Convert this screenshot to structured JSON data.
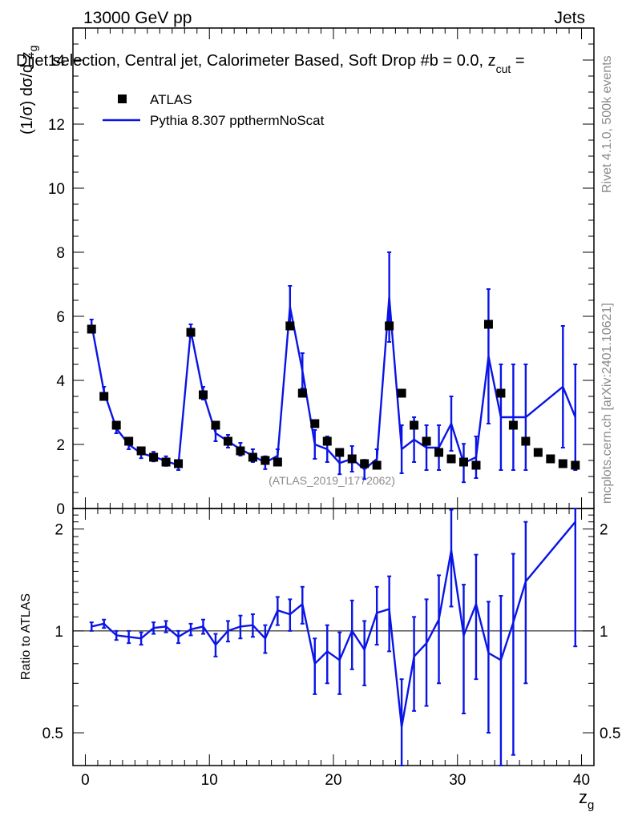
{
  "header": {
    "energy": "13000 GeV pp",
    "category": "Jets",
    "selection": "Dijet selection, Central jet, Calorimeter Based, Soft Drop #b = 0.0, z",
    "selection_sub": "cut",
    "selection_tail": " ="
  },
  "side": {
    "rivet": "Rivet 4.1.0,  500k events",
    "mcplots": "mcplots.cern.ch [arXiv:2401.10621]"
  },
  "watermark": "(ATLAS_2019_I1772062)",
  "axes": {
    "ylabel_main": "(1/σ) dσ/d z",
    "ylabel_main_sub": "g",
    "ylabel_ratio": "Ratio to ATLAS",
    "xlabel": "z",
    "xlabel_sub": "g"
  },
  "legend": {
    "data_label": "ATLAS",
    "mc_label": "Pythia 8.307 ppthermNoScat"
  },
  "colors": {
    "data": "#000000",
    "mc": "#0a14e6"
  },
  "chart_data": [
    {
      "type": "scatter",
      "title": "Dijet selection, Central jet, Calorimeter Based, Soft Drop #b = 0.0, z_cut =",
      "xlabel": "z_g",
      "ylabel": "(1/σ) dσ/d z_g",
      "xlim": [
        -1,
        41
      ],
      "ylim": [
        0,
        15
      ],
      "xticks": [
        0,
        10,
        20,
        30,
        40
      ],
      "yticks": [
        0,
        2,
        4,
        6,
        8,
        10,
        12,
        14
      ],
      "series": [
        {
          "name": "ATLAS",
          "style": "markers",
          "x": [
            0.5,
            1.5,
            2.5,
            3.5,
            4.5,
            5.5,
            6.5,
            7.5,
            8.5,
            9.5,
            10.5,
            11.5,
            12.5,
            13.5,
            14.5,
            15.5,
            16.5,
            17.5,
            18.5,
            19.5,
            20.5,
            21.5,
            22.5,
            23.5,
            24.5,
            25.5,
            26.5,
            27.5,
            28.5,
            29.5,
            30.5,
            31.5,
            32.5,
            33.5,
            34.5,
            35.5,
            36.5,
            37.5,
            38.5,
            39.5
          ],
          "y": [
            5.6,
            3.5,
            2.6,
            2.1,
            1.8,
            1.6,
            1.45,
            1.4,
            5.5,
            3.55,
            2.6,
            2.1,
            1.8,
            1.6,
            1.5,
            1.45,
            5.7,
            3.6,
            2.65,
            2.1,
            1.75,
            1.55,
            1.4,
            1.35,
            5.7,
            3.6,
            2.6,
            2.1,
            1.75,
            1.55,
            1.45,
            1.35,
            5.75,
            3.6,
            2.6,
            2.1,
            1.75,
            1.55,
            1.4,
            1.35
          ]
        },
        {
          "name": "Pythia 8.307 ppthermNoScat",
          "style": "line",
          "x": [
            0.5,
            1.5,
            2.5,
            3.5,
            4.5,
            5.5,
            6.5,
            7.5,
            8.5,
            9.5,
            10.5,
            11.5,
            12.5,
            13.5,
            14.5,
            15.5,
            16.5,
            17.5,
            18.5,
            19.5,
            20.5,
            21.5,
            22.5,
            23.5,
            24.5,
            25.5,
            26.5,
            27.5,
            28.5,
            29.5,
            30.5,
            31.5,
            32.5,
            33.5,
            34.5,
            35.5,
            38.5,
            39.5
          ],
          "y": [
            5.75,
            3.65,
            2.5,
            2.0,
            1.72,
            1.62,
            1.48,
            1.35,
            5.55,
            3.6,
            2.35,
            2.1,
            1.85,
            1.65,
            1.43,
            1.65,
            6.3,
            4.3,
            2.0,
            1.85,
            1.42,
            1.55,
            1.22,
            1.55,
            6.6,
            1.85,
            2.15,
            1.9,
            1.9,
            2.65,
            1.42,
            1.6,
            4.75,
            2.85,
            2.85,
            2.85,
            3.8,
            2.85
          ],
          "err": [
            0.15,
            0.15,
            0.15,
            0.15,
            0.15,
            0.15,
            0.15,
            0.15,
            0.2,
            0.2,
            0.25,
            0.2,
            0.2,
            0.2,
            0.2,
            0.2,
            0.65,
            0.55,
            0.45,
            0.4,
            0.35,
            0.4,
            0.3,
            0.3,
            1.4,
            0.75,
            0.7,
            0.7,
            0.7,
            0.85,
            0.6,
            0.65,
            2.1,
            1.65,
            1.65,
            1.65,
            1.9,
            1.65
          ]
        }
      ]
    },
    {
      "type": "line",
      "title": "Ratio to ATLAS",
      "ylabel": "Ratio to ATLAS",
      "xlabel": "z_g",
      "ylim": [
        0.4,
        2.3
      ],
      "yscale": "log",
      "yticks": [
        0.5,
        1,
        2
      ],
      "reference": 1,
      "series": [
        {
          "name": "Pythia 8.307 ppthermNoScat / ATLAS",
          "x": [
            0.5,
            1.5,
            2.5,
            3.5,
            4.5,
            5.5,
            6.5,
            7.5,
            8.5,
            9.5,
            10.5,
            11.5,
            12.5,
            13.5,
            14.5,
            15.5,
            16.5,
            17.5,
            18.5,
            19.5,
            20.5,
            21.5,
            22.5,
            23.5,
            24.5,
            25.5,
            26.5,
            27.5,
            28.5,
            29.5,
            30.5,
            31.5,
            32.5,
            33.5,
            34.5,
            35.5,
            39.5
          ],
          "y": [
            1.03,
            1.05,
            0.97,
            0.96,
            0.95,
            1.02,
            1.03,
            0.96,
            1.01,
            1.03,
            0.91,
            1.0,
            1.03,
            1.04,
            0.95,
            1.15,
            1.12,
            1.2,
            0.8,
            0.87,
            0.82,
            1.0,
            0.88,
            1.13,
            1.16,
            0.52,
            0.84,
            0.92,
            1.08,
            1.73,
            0.97,
            1.2,
            0.86,
            0.82,
            1.06,
            1.4,
            2.1
          ],
          "err": [
            0.03,
            0.03,
            0.03,
            0.04,
            0.04,
            0.04,
            0.04,
            0.04,
            0.04,
            0.05,
            0.07,
            0.07,
            0.08,
            0.08,
            0.09,
            0.11,
            0.12,
            0.15,
            0.15,
            0.17,
            0.17,
            0.23,
            0.19,
            0.22,
            0.29,
            0.2,
            0.26,
            0.32,
            0.38,
            0.55,
            0.4,
            0.48,
            0.36,
            0.45,
            0.63,
            0.7,
            1.2
          ]
        }
      ]
    }
  ]
}
